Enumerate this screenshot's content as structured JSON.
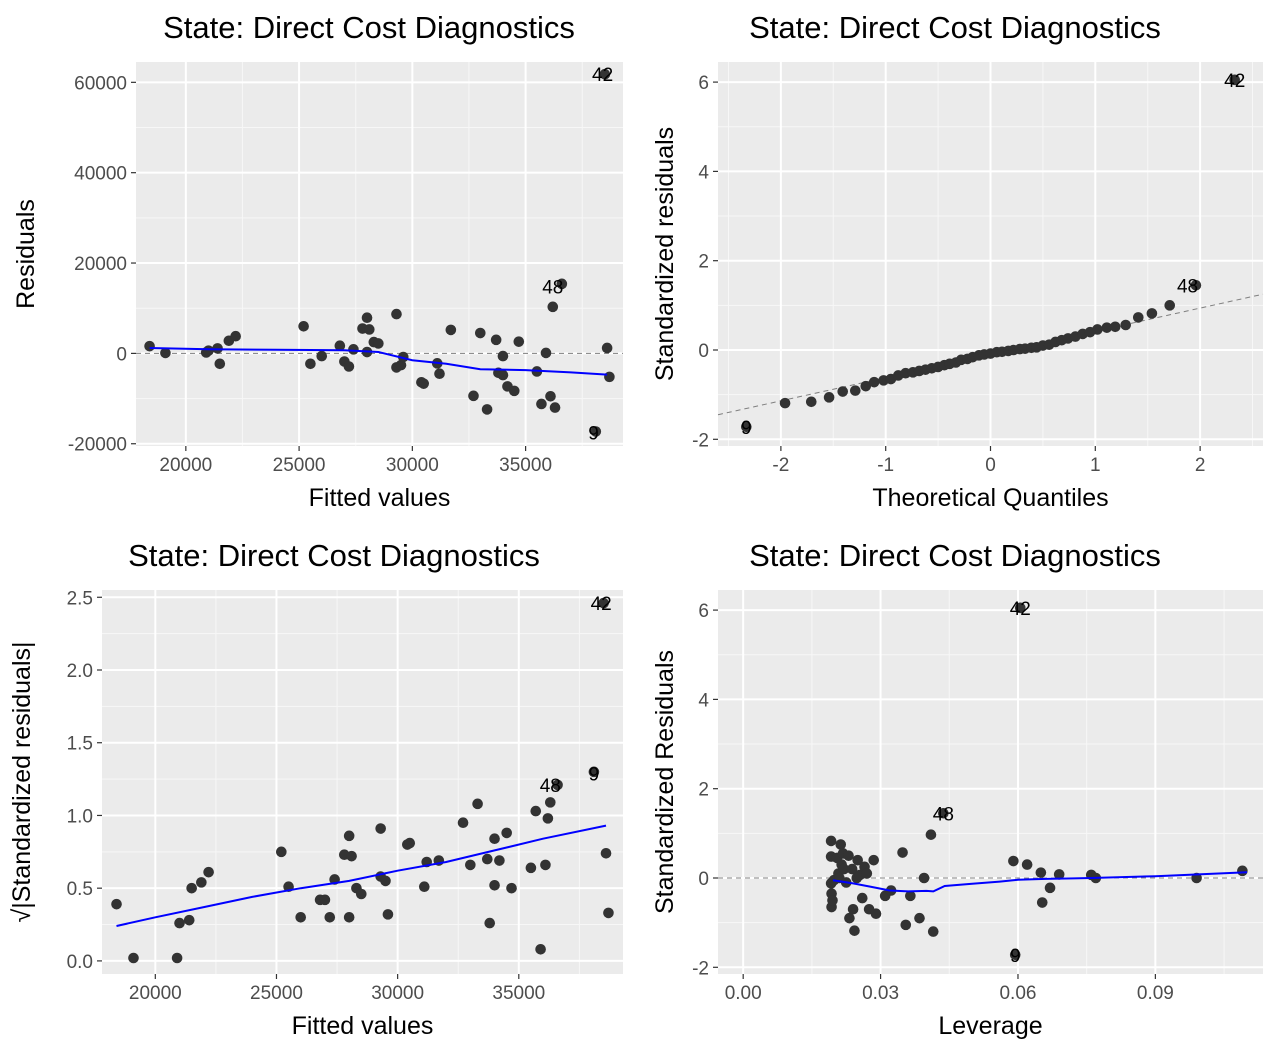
{
  "chart_data": [
    {
      "type": "scatter",
      "title": "State: Direct Cost Diagnostics",
      "xlabel": "Fitted values",
      "ylabel": "Residuals",
      "xlim": [
        17800,
        39300
      ],
      "ylim": [
        -20500,
        64500
      ],
      "xticks": [
        20000,
        25000,
        30000,
        35000
      ],
      "yticks": [
        -20000,
        0,
        20000,
        40000,
        60000
      ],
      "xtick_labels": [
        "20000",
        "25000",
        "30000",
        "35000"
      ],
      "ytick_labels": [
        "-20000",
        "0",
        "20000",
        "40000",
        "60000"
      ],
      "grid": true,
      "reference_line": 0,
      "smooth": [
        [
          18400,
          1200
        ],
        [
          21000,
          900
        ],
        [
          24000,
          800
        ],
        [
          27000,
          700
        ],
        [
          28500,
          300
        ],
        [
          30000,
          -1500
        ],
        [
          31500,
          -2300
        ],
        [
          33000,
          -3500
        ],
        [
          35000,
          -3700
        ],
        [
          37000,
          -4200
        ],
        [
          38600,
          -4700
        ]
      ],
      "points": [
        [
          18400,
          1600
        ],
        [
          19100,
          100
        ],
        [
          20900,
          200
        ],
        [
          21000,
          600
        ],
        [
          21400,
          1100
        ],
        [
          21500,
          -2300
        ],
        [
          21900,
          2800
        ],
        [
          22200,
          3800
        ],
        [
          25200,
          6000
        ],
        [
          25500,
          -2300
        ],
        [
          26000,
          -600
        ],
        [
          26800,
          1700
        ],
        [
          27000,
          -1800
        ],
        [
          27200,
          -2900
        ],
        [
          27400,
          900
        ],
        [
          27800,
          5500
        ],
        [
          28000,
          7900
        ],
        [
          28000,
          300
        ],
        [
          28100,
          5300
        ],
        [
          28300,
          2500
        ],
        [
          28500,
          2200
        ],
        [
          29300,
          8700
        ],
        [
          29300,
          -3100
        ],
        [
          29500,
          -2600
        ],
        [
          29600,
          -800
        ],
        [
          30400,
          -6400
        ],
        [
          30500,
          -6700
        ],
        [
          31100,
          -2200
        ],
        [
          31200,
          -4500
        ],
        [
          31700,
          5200
        ],
        [
          32700,
          -9400
        ],
        [
          33000,
          4500
        ],
        [
          33300,
          -12400
        ],
        [
          33700,
          3000
        ],
        [
          33800,
          -4300
        ],
        [
          34000,
          -4800
        ],
        [
          34000,
          -600
        ],
        [
          34200,
          -7300
        ],
        [
          34500,
          -8300
        ],
        [
          34700,
          2600
        ],
        [
          35500,
          -4000
        ],
        [
          35700,
          -11200
        ],
        [
          35900,
          100
        ],
        [
          36100,
          -9500
        ],
        [
          36200,
          10300
        ],
        [
          36300,
          -12000
        ],
        [
          36600,
          15400
        ],
        [
          38100,
          -17300
        ],
        [
          38600,
          1200
        ],
        [
          38700,
          -5200
        ],
        [
          38500,
          61800
        ]
      ],
      "point_labels": [
        {
          "text": "42",
          "x": 38400,
          "y": 61800
        },
        {
          "text": "48",
          "x": 36200,
          "y": 14800
        },
        {
          "text": "9",
          "x": 38000,
          "y": -17500
        }
      ]
    },
    {
      "type": "scatter",
      "title": "State: Direct Cost Diagnostics",
      "xlabel": "Theoretical Quantiles",
      "ylabel": "Standardized residuals",
      "xlim": [
        -2.6,
        2.6
      ],
      "ylim": [
        -2.15,
        6.45
      ],
      "xticks": [
        -2,
        -1,
        0,
        1,
        2
      ],
      "yticks": [
        -2,
        0,
        2,
        4,
        6
      ],
      "xtick_labels": [
        "-2",
        "-1",
        "0",
        "1",
        "2"
      ],
      "ytick_labels": [
        "-2",
        "0",
        "2",
        "4",
        "6"
      ],
      "grid": true,
      "reference_line": {
        "x1": -2.6,
        "y1": -1.45,
        "x2": 2.6,
        "y2": 1.25
      },
      "points": [
        [
          -2.33,
          -1.72
        ],
        [
          -1.96,
          -1.19
        ],
        [
          -1.71,
          -1.16
        ],
        [
          -1.54,
          -1.06
        ],
        [
          -1.41,
          -0.93
        ],
        [
          -1.29,
          -0.91
        ],
        [
          -1.19,
          -0.81
        ],
        [
          -1.11,
          -0.72
        ],
        [
          -1.02,
          -0.68
        ],
        [
          -0.95,
          -0.65
        ],
        [
          -0.88,
          -0.57
        ],
        [
          -0.81,
          -0.52
        ],
        [
          -0.74,
          -0.5
        ],
        [
          -0.68,
          -0.47
        ],
        [
          -0.62,
          -0.44
        ],
        [
          -0.56,
          -0.41
        ],
        [
          -0.5,
          -0.38
        ],
        [
          -0.44,
          -0.34
        ],
        [
          -0.39,
          -0.31
        ],
        [
          -0.33,
          -0.28
        ],
        [
          -0.28,
          -0.22
        ],
        [
          -0.22,
          -0.2
        ],
        [
          -0.17,
          -0.16
        ],
        [
          -0.11,
          -0.12
        ],
        [
          -0.06,
          -0.1
        ],
        [
          0.0,
          -0.08
        ],
        [
          0.06,
          -0.05
        ],
        [
          0.11,
          -0.04
        ],
        [
          0.17,
          -0.02
        ],
        [
          0.22,
          0.0
        ],
        [
          0.28,
          0.02
        ],
        [
          0.33,
          0.03
        ],
        [
          0.39,
          0.05
        ],
        [
          0.44,
          0.06
        ],
        [
          0.5,
          0.1
        ],
        [
          0.56,
          0.12
        ],
        [
          0.62,
          0.18
        ],
        [
          0.68,
          0.22
        ],
        [
          0.74,
          0.26
        ],
        [
          0.81,
          0.3
        ],
        [
          0.88,
          0.36
        ],
        [
          0.95,
          0.4
        ],
        [
          1.02,
          0.46
        ],
        [
          1.11,
          0.5
        ],
        [
          1.19,
          0.52
        ],
        [
          1.29,
          0.56
        ],
        [
          1.41,
          0.73
        ],
        [
          1.54,
          0.82
        ],
        [
          1.71,
          1.0
        ],
        [
          1.96,
          1.45
        ],
        [
          2.33,
          6.05
        ]
      ],
      "point_labels": [
        {
          "text": "42",
          "x": 2.33,
          "y": 6.05
        },
        {
          "text": "48",
          "x": 1.88,
          "y": 1.45
        },
        {
          "text": "9",
          "x": -2.33,
          "y": -1.72
        }
      ]
    },
    {
      "type": "scatter",
      "title": "State: Direct Cost Diagnostics",
      "xlabel": "Fitted values",
      "ylabel": "√|Standardized residuals|",
      "xlim": [
        17800,
        39300
      ],
      "ylim": [
        -0.09,
        2.55
      ],
      "xticks": [
        20000,
        25000,
        30000,
        35000
      ],
      "yticks": [
        0.0,
        0.5,
        1.0,
        1.5,
        2.0,
        2.5
      ],
      "xtick_labels": [
        "20000",
        "25000",
        "30000",
        "35000"
      ],
      "ytick_labels": [
        "0.0",
        "0.5",
        "1.0",
        "1.5",
        "2.0",
        "2.5"
      ],
      "grid": true,
      "smooth": [
        [
          18400,
          0.24
        ],
        [
          20000,
          0.3
        ],
        [
          22000,
          0.37
        ],
        [
          24000,
          0.44
        ],
        [
          26000,
          0.5
        ],
        [
          28000,
          0.55
        ],
        [
          30000,
          0.62
        ],
        [
          32000,
          0.68
        ],
        [
          34000,
          0.76
        ],
        [
          36000,
          0.84
        ],
        [
          38600,
          0.93
        ]
      ],
      "points": [
        [
          18400,
          0.39
        ],
        [
          19100,
          0.02
        ],
        [
          20900,
          0.02
        ],
        [
          21000,
          0.26
        ],
        [
          21400,
          0.28
        ],
        [
          21500,
          0.5
        ],
        [
          21900,
          0.54
        ],
        [
          22200,
          0.61
        ],
        [
          25200,
          0.75
        ],
        [
          25500,
          0.51
        ],
        [
          26000,
          0.3
        ],
        [
          26800,
          0.42
        ],
        [
          27000,
          0.42
        ],
        [
          27200,
          0.3
        ],
        [
          27400,
          0.56
        ],
        [
          27800,
          0.73
        ],
        [
          28000,
          0.86
        ],
        [
          28000,
          0.3
        ],
        [
          28100,
          0.72
        ],
        [
          28300,
          0.5
        ],
        [
          28500,
          0.46
        ],
        [
          29300,
          0.91
        ],
        [
          29300,
          0.58
        ],
        [
          29500,
          0.55
        ],
        [
          29600,
          0.32
        ],
        [
          30400,
          0.8
        ],
        [
          30500,
          0.81
        ],
        [
          31100,
          0.51
        ],
        [
          31200,
          0.68
        ],
        [
          31700,
          0.69
        ],
        [
          32700,
          0.95
        ],
        [
          33000,
          0.66
        ],
        [
          33300,
          1.08
        ],
        [
          33700,
          0.7
        ],
        [
          33800,
          0.26
        ],
        [
          34000,
          0.52
        ],
        [
          34000,
          0.84
        ],
        [
          34200,
          0.69
        ],
        [
          34500,
          0.88
        ],
        [
          34700,
          0.5
        ],
        [
          35500,
          0.64
        ],
        [
          35700,
          1.03
        ],
        [
          35900,
          0.08
        ],
        [
          36100,
          0.66
        ],
        [
          36200,
          0.98
        ],
        [
          36300,
          1.09
        ],
        [
          36600,
          1.21
        ],
        [
          38100,
          1.3
        ],
        [
          38600,
          0.74
        ],
        [
          38700,
          0.33
        ],
        [
          38500,
          2.46
        ]
      ],
      "point_labels": [
        {
          "text": "42",
          "x": 38400,
          "y": 2.46
        },
        {
          "text": "48",
          "x": 36300,
          "y": 1.21
        },
        {
          "text": "9",
          "x": 38100,
          "y": 1.29
        }
      ]
    },
    {
      "type": "scatter",
      "title": "State: Direct Cost Diagnostics",
      "xlabel": "Leverage",
      "ylabel": "Standardized Residuals",
      "xlim": [
        -0.0055,
        0.1135
      ],
      "ylim": [
        -2.15,
        6.45
      ],
      "xticks": [
        0.0,
        0.03,
        0.06,
        0.09
      ],
      "yticks": [
        -2,
        0,
        2,
        4,
        6
      ],
      "xtick_labels": [
        "0.00",
        "0.03",
        "0.06",
        "0.09"
      ],
      "ytick_labels": [
        "-2",
        "0",
        "2",
        "4",
        "6"
      ],
      "grid": true,
      "reference_line": 0,
      "smooth": [
        [
          0.0196,
          -0.05
        ],
        [
          0.024,
          -0.12
        ],
        [
          0.028,
          -0.2
        ],
        [
          0.032,
          -0.28
        ],
        [
          0.036,
          -0.3
        ],
        [
          0.04,
          -0.29
        ],
        [
          0.0415,
          -0.3
        ],
        [
          0.044,
          -0.18
        ],
        [
          0.05,
          -0.13
        ],
        [
          0.056,
          -0.08
        ],
        [
          0.06,
          -0.04
        ],
        [
          0.066,
          -0.02
        ],
        [
          0.072,
          -0.01
        ],
        [
          0.076,
          0.0
        ],
        [
          0.09,
          0.04
        ],
        [
          0.11,
          0.13
        ]
      ],
      "points": [
        [
          0.0192,
          0.83
        ],
        [
          0.0192,
          0.48
        ],
        [
          0.0192,
          -0.12
        ],
        [
          0.0193,
          -0.35
        ],
        [
          0.0193,
          -0.65
        ],
        [
          0.0195,
          -0.5
        ],
        [
          0.0198,
          -0.05
        ],
        [
          0.0205,
          0.45
        ],
        [
          0.0208,
          0.1
        ],
        [
          0.021,
          0.0
        ],
        [
          0.0213,
          0.75
        ],
        [
          0.0215,
          0.3
        ],
        [
          0.0218,
          0.55
        ],
        [
          0.022,
          0.2
        ],
        [
          0.0225,
          -0.1
        ],
        [
          0.023,
          0.5
        ],
        [
          0.0232,
          -0.9
        ],
        [
          0.0238,
          0.2
        ],
        [
          0.024,
          -0.7
        ],
        [
          0.0243,
          -1.18
        ],
        [
          0.0248,
          0.0
        ],
        [
          0.025,
          0.4
        ],
        [
          0.0255,
          0.07
        ],
        [
          0.026,
          -0.45
        ],
        [
          0.0265,
          0.25
        ],
        [
          0.027,
          0.1
        ],
        [
          0.0275,
          -0.7
        ],
        [
          0.0285,
          0.4
        ],
        [
          0.029,
          -0.8
        ],
        [
          0.031,
          -0.4
        ],
        [
          0.0323,
          -0.28
        ],
        [
          0.0348,
          0.57
        ],
        [
          0.0355,
          -1.05
        ],
        [
          0.0365,
          -0.4
        ],
        [
          0.0385,
          -0.9
        ],
        [
          0.0395,
          0.0
        ],
        [
          0.041,
          0.97
        ],
        [
          0.0415,
          -1.2
        ],
        [
          0.0437,
          1.45
        ],
        [
          0.0594,
          -1.72
        ],
        [
          0.059,
          0.38
        ],
        [
          0.0605,
          6.05
        ],
        [
          0.062,
          0.3
        ],
        [
          0.065,
          0.12
        ],
        [
          0.0653,
          -0.55
        ],
        [
          0.067,
          -0.22
        ],
        [
          0.069,
          0.08
        ],
        [
          0.076,
          0.07
        ],
        [
          0.077,
          0.0
        ],
        [
          0.099,
          0.0
        ],
        [
          0.109,
          0.16
        ]
      ],
      "point_labels": [
        {
          "text": "42",
          "x": 0.0605,
          "y": 6.05
        },
        {
          "text": "48",
          "x": 0.0437,
          "y": 1.45
        },
        {
          "text": "9",
          "x": 0.0594,
          "y": -1.72
        }
      ]
    }
  ]
}
